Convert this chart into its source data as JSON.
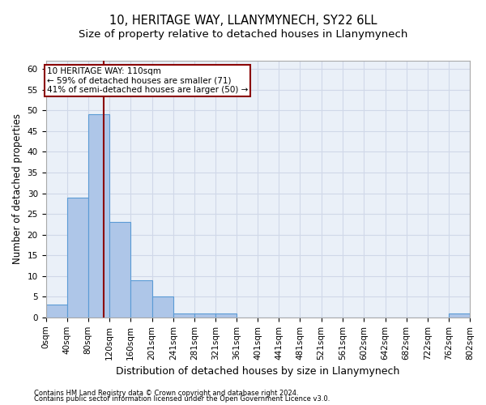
{
  "title": "10, HERITAGE WAY, LLANYMYNECH, SY22 6LL",
  "subtitle": "Size of property relative to detached houses in Llanymynech",
  "xlabel": "Distribution of detached houses by size in Llanymynech",
  "ylabel": "Number of detached properties",
  "footer_line1": "Contains HM Land Registry data © Crown copyright and database right 2024.",
  "footer_line2": "Contains public sector information licensed under the Open Government Licence v3.0.",
  "bin_edges": [
    0,
    40,
    80,
    120,
    160,
    201,
    241,
    281,
    321,
    361,
    401,
    441,
    481,
    521,
    561,
    602,
    642,
    682,
    722,
    762,
    802
  ],
  "bin_labels": [
    "0sqm",
    "40sqm",
    "80sqm",
    "120sqm",
    "160sqm",
    "201sqm",
    "241sqm",
    "281sqm",
    "321sqm",
    "361sqm",
    "401sqm",
    "441sqm",
    "481sqm",
    "521sqm",
    "561sqm",
    "602sqm",
    "642sqm",
    "682sqm",
    "722sqm",
    "762sqm",
    "802sqm"
  ],
  "counts": [
    3,
    29,
    49,
    23,
    9,
    5,
    1,
    1,
    1,
    0,
    0,
    0,
    0,
    0,
    0,
    0,
    0,
    0,
    0,
    1
  ],
  "bar_color": "#aec6e8",
  "bar_edge_color": "#5b9bd5",
  "property_size": 110,
  "vline_color": "#8b0000",
  "annotation_text": "10 HERITAGE WAY: 110sqm\n← 59% of detached houses are smaller (71)\n41% of semi-detached houses are larger (50) →",
  "annotation_box_color": "#8b0000",
  "ylim": [
    0,
    62
  ],
  "yticks": [
    0,
    5,
    10,
    15,
    20,
    25,
    30,
    35,
    40,
    45,
    50,
    55,
    60
  ],
  "grid_color": "#d0d8e8",
  "background_color": "#eaf0f8",
  "title_fontsize": 10.5,
  "subtitle_fontsize": 9.5,
  "annotation_fontsize": 7.5,
  "ylabel_fontsize": 8.5,
  "xlabel_fontsize": 9,
  "tick_fontsize": 7.5,
  "footer_fontsize": 6.0
}
